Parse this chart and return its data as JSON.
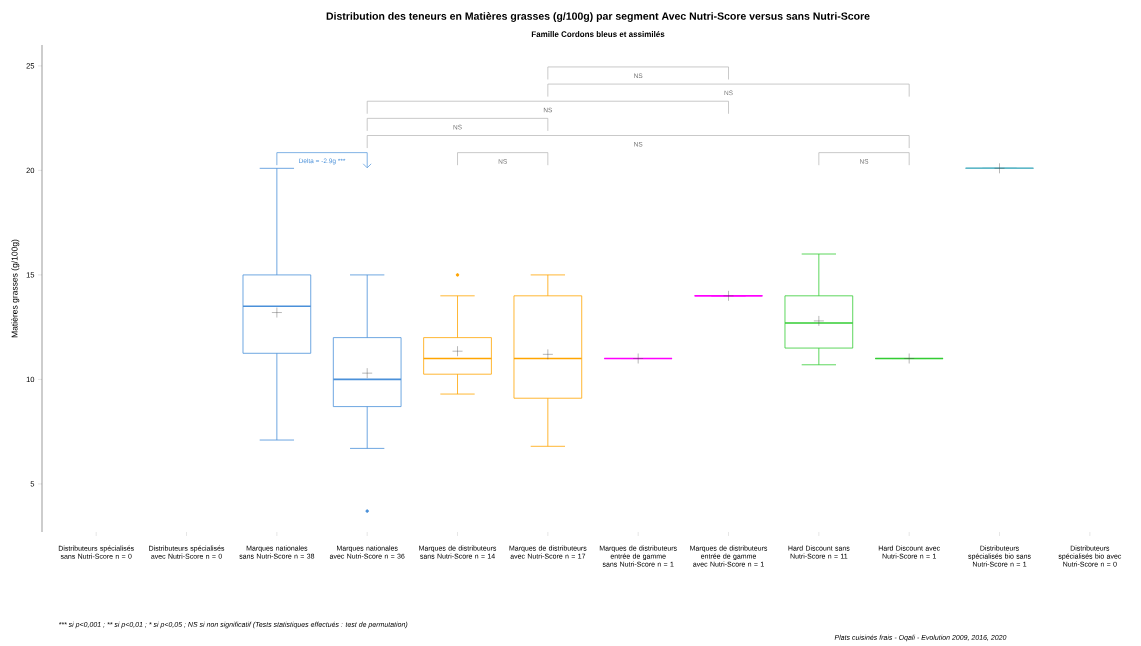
{
  "chart_data": {
    "type": "box",
    "title": "Distribution des teneurs en Matières grasses (g/100g) par segment Avec Nutri-Score versus sans Nutri-Score",
    "subtitle": "Famille Cordons bleus et assimilés",
    "ylabel": "Matières grasses (g/100g)",
    "categories": [
      "Distributeurs spécialisés sans Nutri-Score n = 0",
      "Distributeurs spécialisés avec Nutri-Score n = 0",
      "Marques nationales sans Nutri-Score n = 38",
      "Marques nationales avec Nutri-Score n = 36",
      "Marques de distributeurs sans Nutri-Score n = 14",
      "Marques de distributeurs avec Nutri-Score n = 17",
      "Marques de distributeurs entrée de gamme sans Nutri-Score n = 1",
      "Marques de distributeurs entrée de gamme avec Nutri-Score n = 1",
      "Hard Discount sans Nutri-Score n = 11",
      "Hard Discount avec Nutri-Score n = 1",
      "Distributeurs spécialisés bio sans Nutri-Score n = 1",
      "Distributeurs spécialisés bio avec Nutri-Score n = 0"
    ],
    "boxes": [
      null,
      null,
      {
        "low": 7.1,
        "q1": 11.25,
        "median": 13.5,
        "q3": 15,
        "high": 20.1,
        "mean": 13.2
      },
      {
        "low": 6.7,
        "q1": 8.7,
        "median": 10,
        "q3": 12,
        "high": 15,
        "mean": 10.3,
        "outliers": [
          3.7
        ]
      },
      {
        "low": 9.3,
        "q1": 10.25,
        "median": 11,
        "q3": 12,
        "high": 14,
        "mean": 11.35,
        "outliers": [
          15
        ]
      },
      {
        "low": 6.8,
        "q1": 9.1,
        "median": 11,
        "q3": 14,
        "high": 15,
        "mean": 11.2
      },
      {
        "low": 11,
        "q1": 11,
        "median": 11,
        "q3": 11,
        "high": 11,
        "mean": 11
      },
      {
        "low": 14,
        "q1": 14,
        "median": 14,
        "q3": 14,
        "high": 14,
        "mean": 14
      },
      {
        "low": 10.7,
        "q1": 11.5,
        "median": 12.7,
        "q3": 14,
        "high": 16,
        "mean": 12.8
      },
      {
        "low": 11,
        "q1": 11,
        "median": 11,
        "q3": 11,
        "high": 11,
        "mean": 11
      },
      {
        "low": 20.1,
        "q1": 20.1,
        "median": 20.1,
        "q3": 20.1,
        "high": 20.1,
        "mean": 20.1
      },
      null
    ],
    "colors": [
      null,
      null,
      "#4a90d9",
      "#4a90d9",
      "#ffa500",
      "#ffa500",
      "#ff00ff",
      "#ff00ff",
      "#33cc33",
      "#33cc33",
      "#5fb8c8",
      null
    ],
    "ylim": [
      2.7,
      26
    ],
    "yticks": [
      5,
      10,
      15,
      20,
      25
    ],
    "annotations": [
      "Delta = -2.9g ***",
      "NS",
      "NS",
      "NS",
      "NS",
      "NS",
      "NS",
      "NS",
      "*** si p<0,001 ; ** si p<0,01 ; * si p<0,05 ; NS si non significatif     (Tests statistiques effectués : test de permutation)",
      "Plats cuisinés frais - Oqali - Evolution 2009, 2016, 2020"
    ]
  }
}
